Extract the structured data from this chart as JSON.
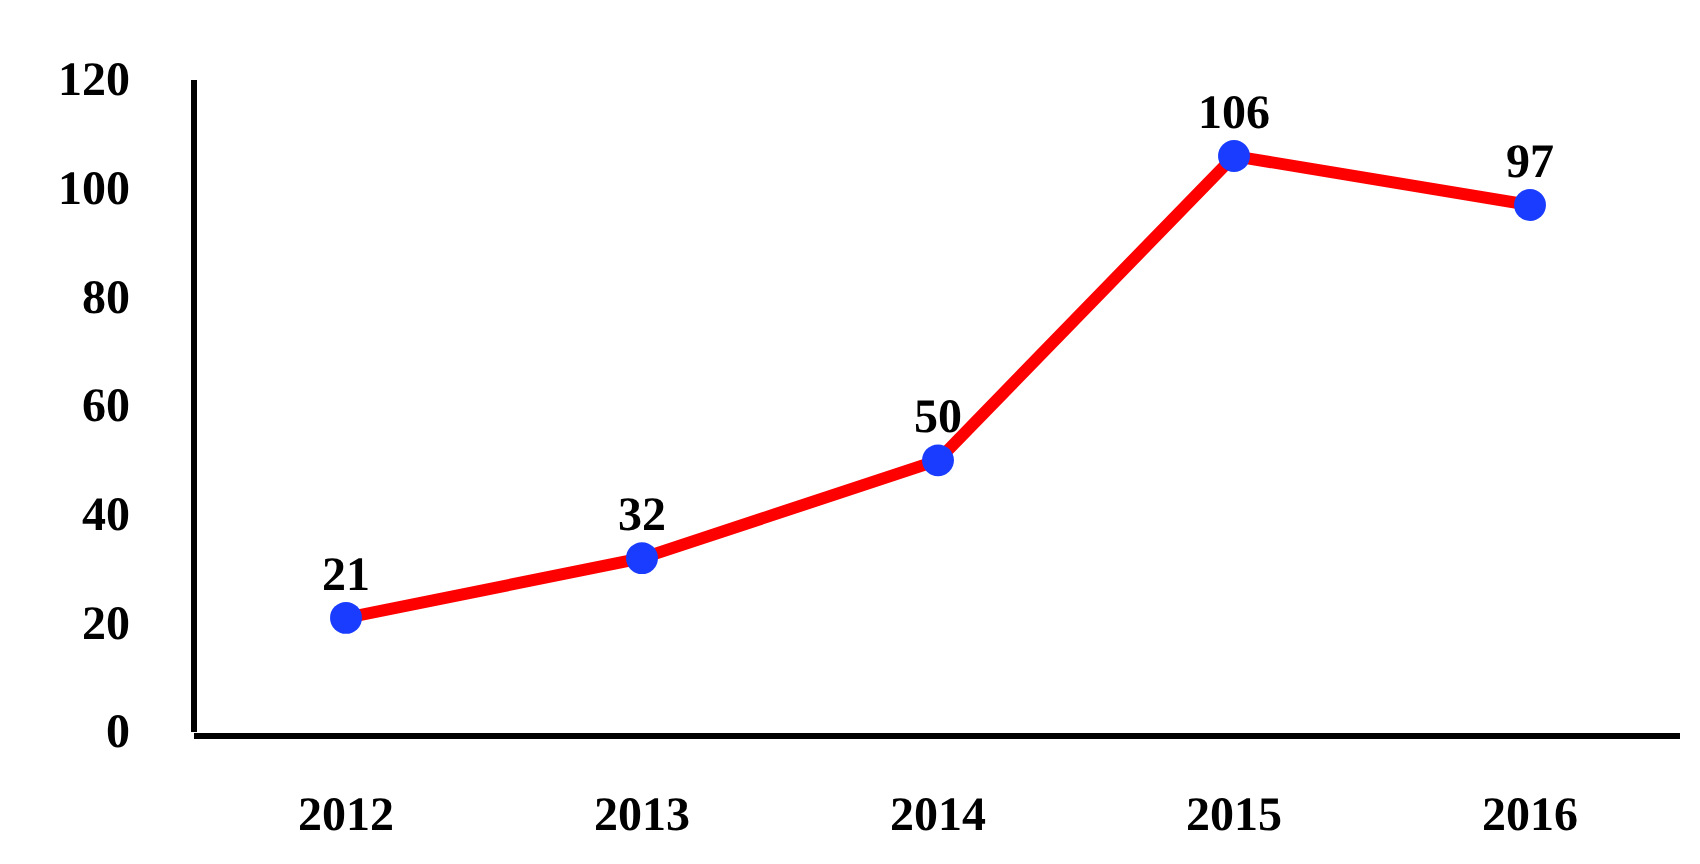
{
  "chart_data": {
    "type": "line",
    "categories": [
      "2012",
      "2013",
      "2014",
      "2015",
      "2016"
    ],
    "series": [
      {
        "color": "#ff0000",
        "colors": [
          "#1a3cff",
          "#1a3cff",
          "#1a3cff",
          "#1a3cff",
          "#1a3cff"
        ],
        "values": [
          21,
          32,
          50,
          106,
          97
        ]
      }
    ],
    "ylim": [
      0,
      120
    ],
    "yticks": [
      0,
      20,
      40,
      60,
      80,
      100,
      120
    ],
    "marker": "circle",
    "data_labels": true,
    "grid": false
  }
}
